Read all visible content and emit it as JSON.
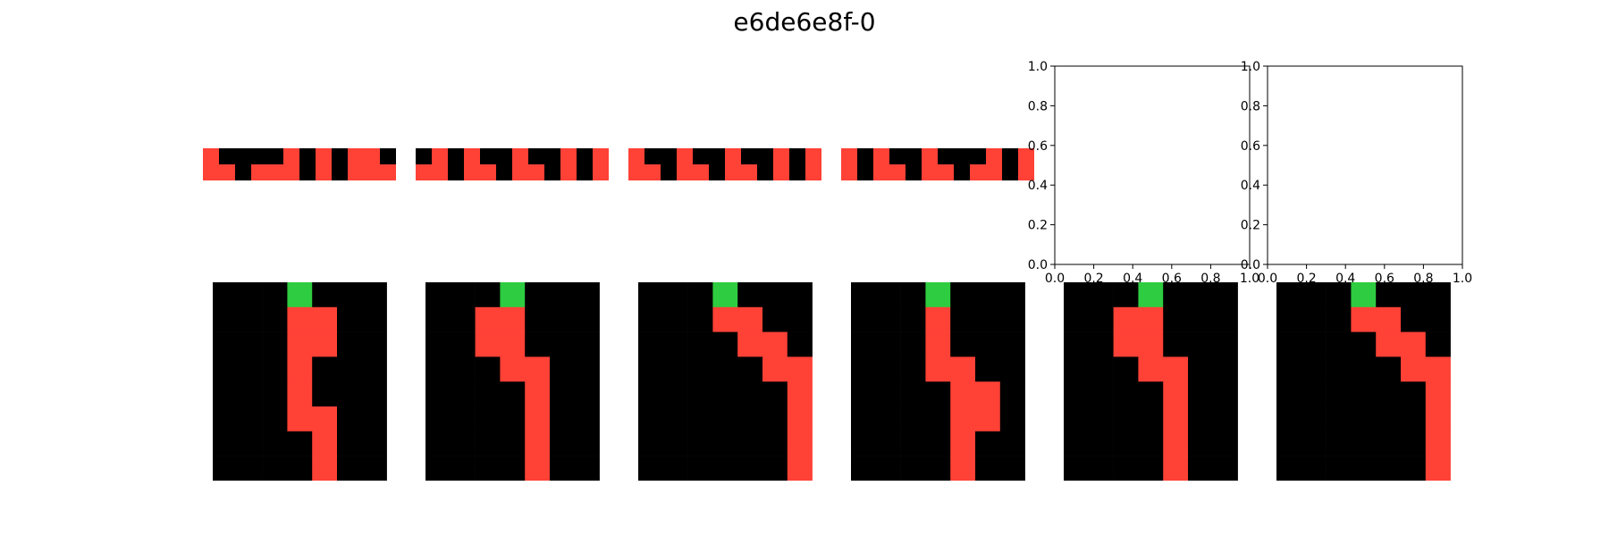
{
  "title": "e6de6e8f-0",
  "palette": {
    "0": "#000000",
    "2": "#ff4136",
    "3": "#2ecc40"
  },
  "top_row": [
    [
      [
        2,
        0,
        0,
        0,
        0,
        2,
        0,
        2,
        0,
        2,
        2,
        0
      ],
      [
        2,
        2,
        0,
        2,
        2,
        2,
        0,
        2,
        0,
        2,
        2,
        2
      ]
    ],
    [
      [
        0,
        2,
        0,
        2,
        0,
        0,
        2,
        0,
        0,
        2,
        0,
        2
      ],
      [
        2,
        2,
        0,
        2,
        2,
        0,
        2,
        2,
        0,
        2,
        0,
        2
      ]
    ],
    [
      [
        2,
        0,
        0,
        2,
        0,
        0,
        2,
        0,
        0,
        2,
        0,
        2
      ],
      [
        2,
        2,
        0,
        2,
        2,
        0,
        2,
        2,
        0,
        2,
        0,
        2
      ]
    ],
    [
      [
        2,
        0,
        2,
        0,
        0,
        2,
        0,
        0,
        0,
        2,
        0,
        2
      ],
      [
        2,
        0,
        2,
        2,
        0,
        2,
        2,
        0,
        2,
        2,
        0,
        2
      ]
    ]
  ],
  "bottom_row": [
    [
      [
        0,
        0,
        0,
        3,
        0,
        0,
        0
      ],
      [
        0,
        0,
        0,
        2,
        2,
        0,
        0
      ],
      [
        0,
        0,
        0,
        2,
        2,
        0,
        0
      ],
      [
        0,
        0,
        0,
        2,
        0,
        0,
        0
      ],
      [
        0,
        0,
        0,
        2,
        0,
        0,
        0
      ],
      [
        0,
        0,
        0,
        2,
        2,
        0,
        0
      ],
      [
        0,
        0,
        0,
        0,
        2,
        0,
        0
      ],
      [
        0,
        0,
        0,
        0,
        2,
        0,
        0
      ]
    ],
    [
      [
        0,
        0,
        0,
        3,
        0,
        0,
        0
      ],
      [
        0,
        0,
        2,
        2,
        0,
        0,
        0
      ],
      [
        0,
        0,
        2,
        2,
        0,
        0,
        0
      ],
      [
        0,
        0,
        0,
        2,
        2,
        0,
        0
      ],
      [
        0,
        0,
        0,
        0,
        2,
        0,
        0
      ],
      [
        0,
        0,
        0,
        0,
        2,
        0,
        0
      ],
      [
        0,
        0,
        0,
        0,
        2,
        0,
        0
      ],
      [
        0,
        0,
        0,
        0,
        2,
        0,
        0
      ]
    ],
    [
      [
        0,
        0,
        0,
        3,
        0,
        0,
        0
      ],
      [
        0,
        0,
        0,
        2,
        2,
        0,
        0
      ],
      [
        0,
        0,
        0,
        0,
        2,
        2,
        0
      ],
      [
        0,
        0,
        0,
        0,
        0,
        2,
        2
      ],
      [
        0,
        0,
        0,
        0,
        0,
        0,
        2
      ],
      [
        0,
        0,
        0,
        0,
        0,
        0,
        2
      ],
      [
        0,
        0,
        0,
        0,
        0,
        0,
        2
      ],
      [
        0,
        0,
        0,
        0,
        0,
        0,
        2
      ]
    ],
    [
      [
        0,
        0,
        0,
        3,
        0,
        0,
        0
      ],
      [
        0,
        0,
        0,
        2,
        0,
        0,
        0
      ],
      [
        0,
        0,
        0,
        2,
        0,
        0,
        0
      ],
      [
        0,
        0,
        0,
        2,
        2,
        0,
        0
      ],
      [
        0,
        0,
        0,
        0,
        2,
        2,
        0
      ],
      [
        0,
        0,
        0,
        0,
        2,
        2,
        0
      ],
      [
        0,
        0,
        0,
        0,
        2,
        0,
        0
      ],
      [
        0,
        0,
        0,
        0,
        2,
        0,
        0
      ]
    ],
    [
      [
        0,
        0,
        0,
        3,
        0,
        0,
        0
      ],
      [
        0,
        0,
        2,
        2,
        0,
        0,
        0
      ],
      [
        0,
        0,
        2,
        2,
        0,
        0,
        0
      ],
      [
        0,
        0,
        0,
        2,
        2,
        0,
        0
      ],
      [
        0,
        0,
        0,
        0,
        2,
        0,
        0
      ],
      [
        0,
        0,
        0,
        0,
        2,
        0,
        0
      ],
      [
        0,
        0,
        0,
        0,
        2,
        0,
        0
      ],
      [
        0,
        0,
        0,
        0,
        2,
        0,
        0
      ]
    ],
    [
      [
        0,
        0,
        0,
        3,
        0,
        0,
        0
      ],
      [
        0,
        0,
        0,
        2,
        2,
        0,
        0
      ],
      [
        0,
        0,
        0,
        0,
        2,
        2,
        0
      ],
      [
        0,
        0,
        0,
        0,
        0,
        2,
        2
      ],
      [
        0,
        0,
        0,
        0,
        0,
        0,
        2
      ],
      [
        0,
        0,
        0,
        0,
        0,
        0,
        2
      ],
      [
        0,
        0,
        0,
        0,
        0,
        0,
        2
      ],
      [
        0,
        0,
        0,
        0,
        0,
        0,
        2
      ]
    ]
  ],
  "empty_axes": [
    {
      "xlim": [
        0.0,
        1.0
      ],
      "ylim": [
        0.0,
        1.0
      ],
      "xticks": [
        "0.0",
        "0.2",
        "0.4",
        "0.6",
        "0.8",
        "1.0"
      ],
      "yticks": [
        "0.0",
        "0.2",
        "0.4",
        "0.6",
        "0.8",
        "1.0"
      ]
    },
    {
      "xlim": [
        0.0,
        1.0
      ],
      "ylim": [
        0.0,
        1.0
      ],
      "xticks": [
        "0.0",
        "0.2",
        "0.4",
        "0.6",
        "0.8",
        "1.0"
      ],
      "yticks": [
        "0.0",
        "0.2",
        "0.4",
        "0.6",
        "0.8",
        "1.0"
      ]
    }
  ]
}
